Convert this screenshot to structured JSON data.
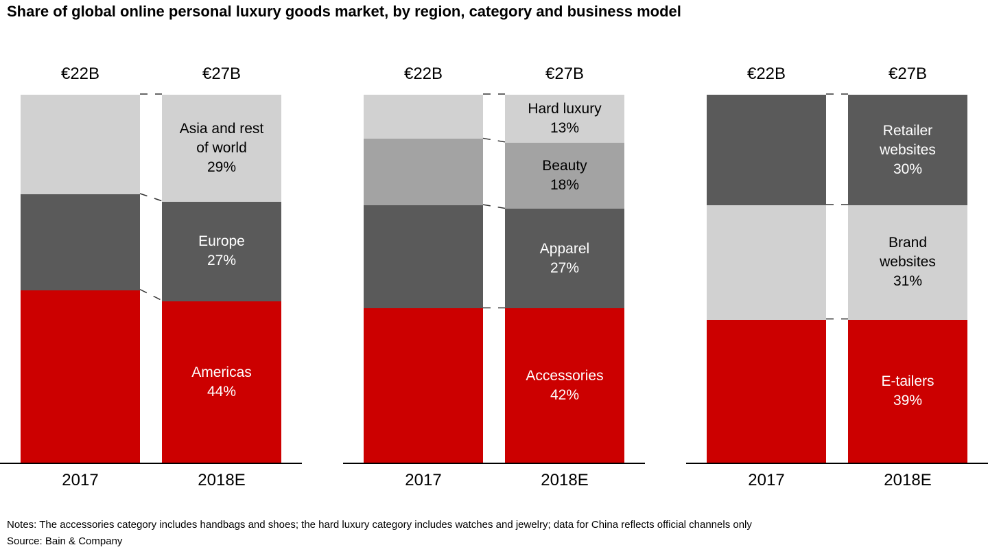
{
  "title": "Share of global online personal luxury goods market, by region, category and business model",
  "footer": {
    "notes": "Notes: The accessories category includes handbags and shoes; the hard luxury category includes watches and jewelry; data for China reflects official channels only",
    "source": "Source: Bain & Company"
  },
  "colors": {
    "red": "#CC0000",
    "dark_gray": "#5A5A5A",
    "medium_gray": "#A3A3A3",
    "light_gray": "#D1D1D1",
    "axis": "#000000",
    "connector": "#333333"
  },
  "chart_data": [
    {
      "type": "bar",
      "stacked": true,
      "stack_order": "bottom-to-top",
      "dimension": "region",
      "categories": [
        "2017",
        "2018E"
      ],
      "bar_totals": [
        "€22B",
        "€27B"
      ],
      "series": [
        {
          "name": "Americas",
          "values": [
            47,
            44
          ],
          "color_key": "red",
          "label_lines": [
            "Americas"
          ],
          "pct_label": "44%",
          "label_text_color": "#FFFFFF"
        },
        {
          "name": "Europe",
          "values": [
            26,
            27
          ],
          "color_key": "dark_gray",
          "label_lines": [
            "Europe"
          ],
          "pct_label": "27%",
          "label_text_color": "#FFFFFF"
        },
        {
          "name": "Asia and rest of world",
          "values": [
            27,
            29
          ],
          "color_key": "light_gray",
          "label_lines": [
            "Asia and rest",
            "of world"
          ],
          "pct_label": "29%",
          "label_text_color": "#000000"
        }
      ]
    },
    {
      "type": "bar",
      "stacked": true,
      "stack_order": "bottom-to-top",
      "dimension": "category",
      "categories": [
        "2017",
        "2018E"
      ],
      "bar_totals": [
        "€22B",
        "€27B"
      ],
      "series": [
        {
          "name": "Accessories",
          "values": [
            42,
            42
          ],
          "color_key": "red",
          "label_lines": [
            "Accessories"
          ],
          "pct_label": "42%",
          "label_text_color": "#FFFFFF"
        },
        {
          "name": "Apparel",
          "values": [
            28,
            27
          ],
          "color_key": "dark_gray",
          "label_lines": [
            "Apparel"
          ],
          "pct_label": "27%",
          "label_text_color": "#FFFFFF"
        },
        {
          "name": "Beauty",
          "values": [
            18,
            18
          ],
          "color_key": "medium_gray",
          "label_lines": [
            "Beauty"
          ],
          "pct_label": "18%",
          "label_text_color": "#000000"
        },
        {
          "name": "Hard luxury",
          "values": [
            12,
            13
          ],
          "color_key": "light_gray",
          "label_lines": [
            "Hard luxury"
          ],
          "pct_label": "13%",
          "label_text_color": "#000000"
        }
      ]
    },
    {
      "type": "bar",
      "stacked": true,
      "stack_order": "bottom-to-top",
      "dimension": "business model",
      "categories": [
        "2017",
        "2018E"
      ],
      "bar_totals": [
        "€22B",
        "€27B"
      ],
      "series": [
        {
          "name": "E-tailers",
          "values": [
            39,
            39
          ],
          "color_key": "red",
          "label_lines": [
            "E-tailers"
          ],
          "pct_label": "39%",
          "label_text_color": "#FFFFFF"
        },
        {
          "name": "Brand websites",
          "values": [
            31,
            31
          ],
          "color_key": "light_gray",
          "label_lines": [
            "Brand",
            "websites"
          ],
          "pct_label": "31%",
          "label_text_color": "#000000"
        },
        {
          "name": "Retailer websites",
          "values": [
            30,
            30
          ],
          "color_key": "dark_gray",
          "label_lines": [
            "Retailer",
            "websites"
          ],
          "pct_label": "30%",
          "label_text_color": "#FFFFFF"
        }
      ]
    }
  ]
}
